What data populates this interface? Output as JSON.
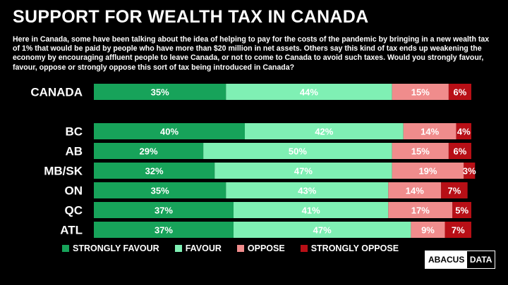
{
  "title": "SUPPORT FOR WEALTH TAX IN CANADA",
  "question": "Here in Canada, some have been talking about the idea of helping to pay for the costs of the pandemic by bringing in a new wealth tax of 1% that would be paid by people who have more than $20 million in net assets. Others say this kind of tax ends up weakening the economy by encouraging affluent people to leave Canada, or not to come to Canada to avoid such taxes. Would you strongly favour, favour, oppose or strongly oppose this sort of tax being introduced in Canada?",
  "logo": {
    "part1": "ABACUS",
    "part2": "DATA"
  },
  "colors": {
    "strongly_favour": "#17a35a",
    "favour": "#7ff0b4",
    "oppose": "#f08c8c",
    "strongly_oppose": "#b80f16"
  },
  "chart_data": {
    "type": "bar",
    "orientation": "horizontal",
    "stacked": true,
    "categories": [
      "CANADA",
      "BC",
      "AB",
      "MB/SK",
      "ON",
      "QC",
      "ATL"
    ],
    "series": [
      {
        "name": "STRONGLY FAVOUR",
        "color": "#17a35a",
        "values": [
          35,
          40,
          29,
          32,
          35,
          37,
          37
        ]
      },
      {
        "name": "FAVOUR",
        "color": "#7ff0b4",
        "values": [
          44,
          42,
          50,
          47,
          43,
          41,
          47
        ]
      },
      {
        "name": "OPPOSE",
        "color": "#f08c8c",
        "values": [
          15,
          14,
          15,
          19,
          14,
          17,
          9
        ]
      },
      {
        "name": "STRONGLY OPPOSE",
        "color": "#b80f16",
        "values": [
          6,
          4,
          6,
          3,
          7,
          5,
          7
        ]
      }
    ],
    "data_labels": [
      [
        "35%",
        "44%",
        "15%",
        "6%"
      ],
      [
        "40%",
        "42%",
        "14%",
        "4%"
      ],
      [
        "29%",
        "50%",
        "15%",
        "6%"
      ],
      [
        "32%",
        "47%",
        "19%",
        "3%"
      ],
      [
        "35%",
        "43%",
        "14%",
        "7%"
      ],
      [
        "37%",
        "41%",
        "17%",
        "5%"
      ],
      [
        "37%",
        "47%",
        "9%",
        "7%"
      ]
    ],
    "xlim": [
      0,
      100
    ],
    "grid": false,
    "legend_position": "bottom"
  }
}
